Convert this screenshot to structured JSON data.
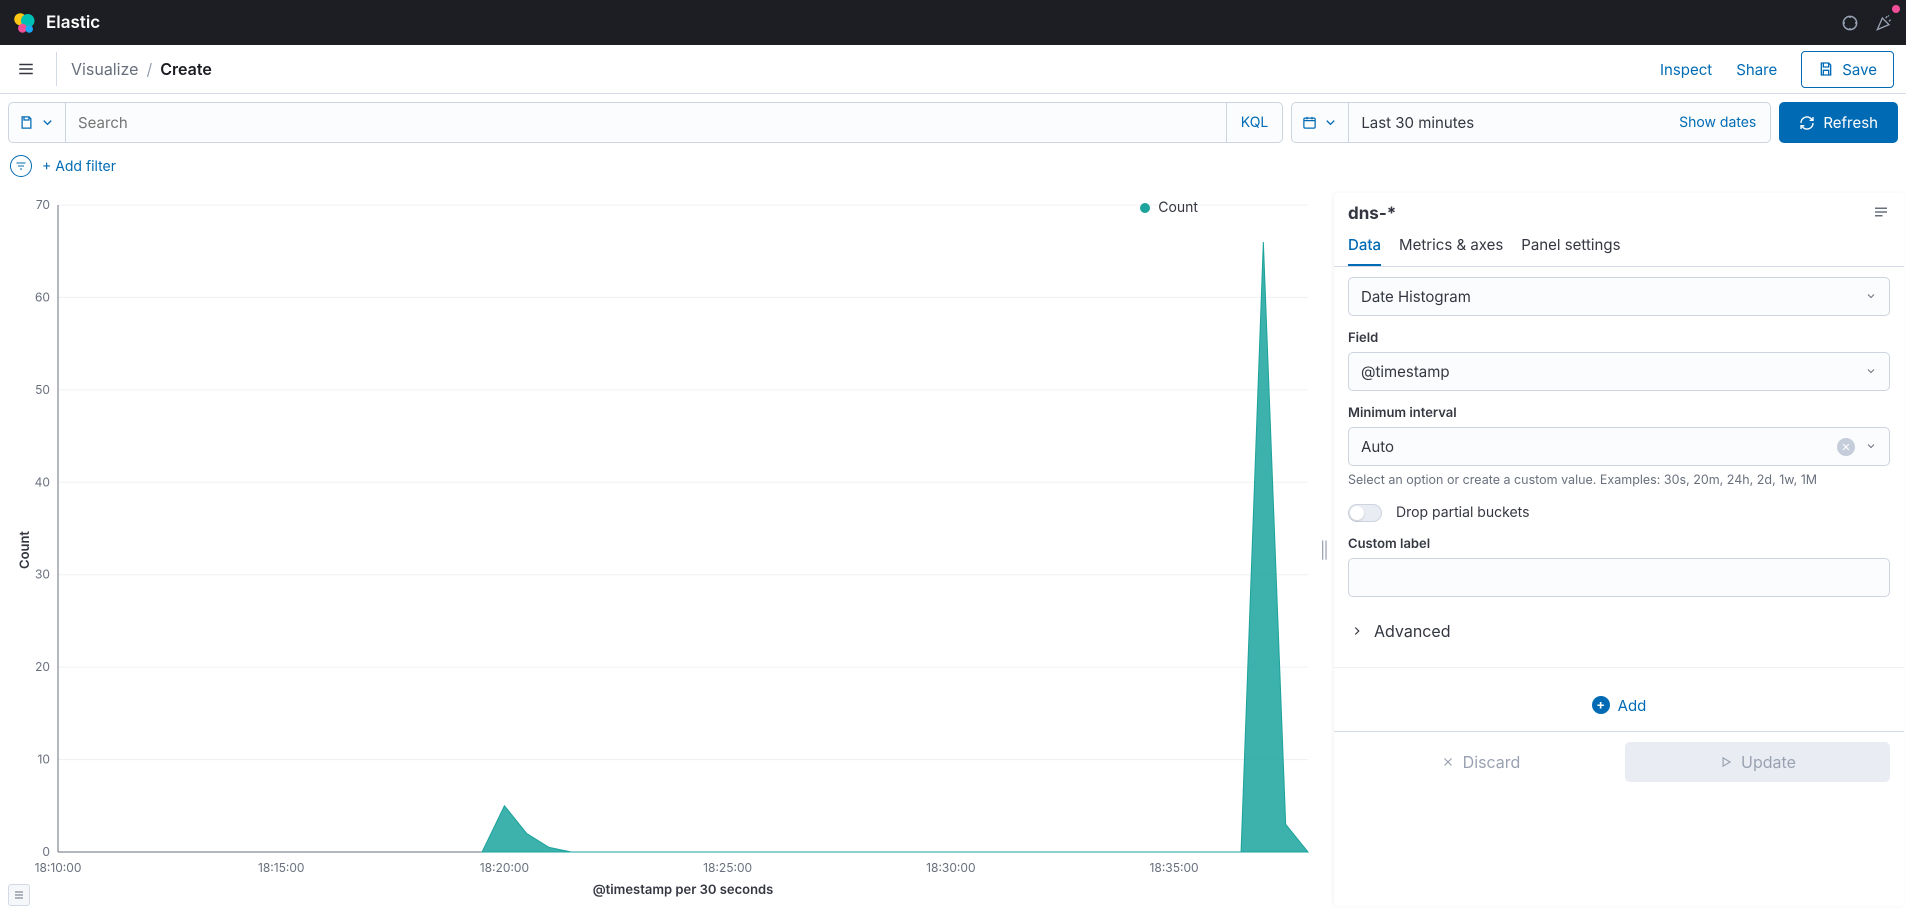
{
  "brand": "Elastic",
  "breadcrumb": {
    "visualize": "Visualize",
    "current": "Create"
  },
  "top_actions": {
    "inspect": "Inspect",
    "share": "Share",
    "save": "Save"
  },
  "querybar": {
    "search_placeholder": "Search",
    "kql": "KQL",
    "time_range": "Last 30 minutes",
    "show_dates": "Show dates",
    "refresh": "Refresh"
  },
  "filters": {
    "add_filter": "+ Add filter"
  },
  "chart": {
    "type": "area",
    "legend_label": "Count",
    "legend_color": "#1ba39c",
    "series_color": "#1ba39c",
    "y_label": "Count",
    "x_label": "@timestamp per 30 seconds",
    "y_ticks": [
      0,
      10,
      20,
      30,
      40,
      50,
      60,
      70
    ],
    "ylim": [
      0,
      70
    ],
    "x_ticks": [
      "18:10:00",
      "18:15:00",
      "18:20:00",
      "18:25:00",
      "18:30:00",
      "18:35:00"
    ],
    "points": [
      {
        "x": "18:19:30",
        "y": 0
      },
      {
        "x": "18:20:00",
        "y": 5
      },
      {
        "x": "18:20:30",
        "y": 2
      },
      {
        "x": "18:21:00",
        "y": 0.5
      },
      {
        "x": "18:21:30",
        "y": 0
      },
      {
        "x": "18:36:30",
        "y": 0
      },
      {
        "x": "18:37:00",
        "y": 66
      },
      {
        "x": "18:37:30",
        "y": 3
      },
      {
        "x": "18:38:00",
        "y": 0
      }
    ],
    "background_color": "#ffffff",
    "grid_color": "#eef0f4",
    "axis_color": "#69707d",
    "tick_fontsize": 12
  },
  "side": {
    "index_pattern": "dns-*",
    "tabs": [
      "Data",
      "Metrics & axes",
      "Panel settings"
    ],
    "active_tab": 0,
    "aggregation_label": "Date Histogram",
    "field_label": "Field",
    "field_value": "@timestamp",
    "min_interval_label": "Minimum interval",
    "min_interval_value": "Auto",
    "min_interval_help": "Select an option or create a custom value. Examples: 30s, 20m, 24h, 2d, 1w, 1M",
    "drop_partial": "Drop partial buckets",
    "custom_label": "Custom label",
    "advanced": "Advanced",
    "add": "Add"
  },
  "footer": {
    "discard": "Discard",
    "update": "Update"
  }
}
